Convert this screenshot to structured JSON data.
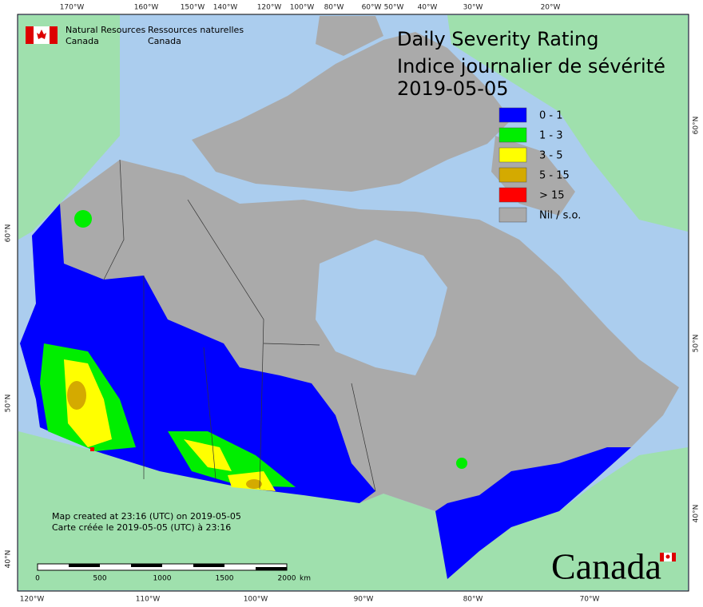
{
  "header": {
    "agency_en": [
      "Natural Resources",
      "Canada"
    ],
    "agency_fr": [
      "Ressources naturelles",
      "Canada"
    ]
  },
  "title": {
    "en": "Daily Severity Rating",
    "fr": "Indice journalier de sévérité",
    "date": "2019-05-05"
  },
  "legend": [
    {
      "label": "0 - 1",
      "color": "#0000ff"
    },
    {
      "label": "1 - 3",
      "color": "#00ee00"
    },
    {
      "label": "3 - 5",
      "color": "#ffff00"
    },
    {
      "label": "5 - 15",
      "color": "#d4aa00"
    },
    {
      "label": "> 15",
      "color": "#ff0000"
    },
    {
      "label": "Nil / s.o.",
      "color": "#aaaaaa"
    }
  ],
  "footer": {
    "created_en": "Map created at 23:16 (UTC) on 2019-05-05",
    "created_fr": "Carte créée le 2019-05-05 (UTC) à 23:16"
  },
  "scale_bar": {
    "labels": [
      "0",
      "500",
      "1000",
      "1500",
      "2000"
    ],
    "unit": "km"
  },
  "graticule": {
    "top": [
      "170°W",
      "160°W",
      "150°W",
      "140°W",
      "120°W",
      "100°W",
      "80°W",
      "60°W",
      "50°W",
      "40°W",
      "30°W",
      "20°W"
    ],
    "bottom": [
      "120°W",
      "110°W",
      "100°W",
      "90°W",
      "80°W",
      "70°W"
    ],
    "left": [
      "60°N",
      "50°N",
      "40°N"
    ],
    "right": [
      "60°N",
      "50°N",
      "40°N"
    ]
  },
  "wordmark": "Canada"
}
